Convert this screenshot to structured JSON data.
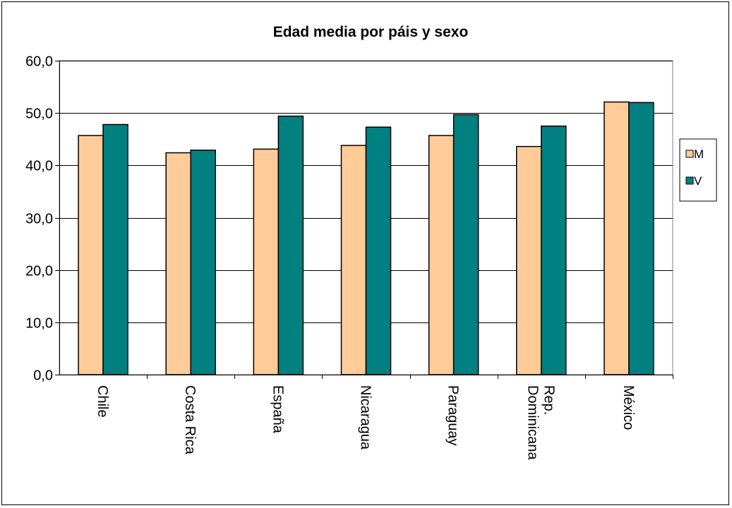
{
  "chart_data": {
    "type": "bar",
    "title": "Edad media por páis  y sexo",
    "categories": [
      "Chile",
      "Costa Rica",
      "España",
      "Nicaragua",
      "Paraguay",
      "Rep. Dominicana",
      "México"
    ],
    "category_lines": [
      [
        "Chile"
      ],
      [
        "Costa Rica"
      ],
      [
        "España"
      ],
      [
        "Nicaragua"
      ],
      [
        "Paraguay"
      ],
      [
        "Rep.",
        "Dominicana"
      ],
      [
        "México"
      ]
    ],
    "series": [
      {
        "name": "M",
        "color": "#FFCC99",
        "values": [
          45.7,
          42.4,
          43.1,
          43.8,
          45.7,
          43.6,
          52.1
        ]
      },
      {
        "name": "V",
        "color": "#008080",
        "values": [
          47.8,
          42.9,
          49.4,
          47.3,
          49.7,
          47.5,
          52.0
        ]
      }
    ],
    "ylim": [
      0,
      60
    ],
    "yticks": [
      "0,0",
      "10,0",
      "20,0",
      "30,0",
      "40,0",
      "50,0",
      "60,0"
    ],
    "ytick_values": [
      0,
      10,
      20,
      30,
      40,
      50,
      60
    ],
    "xlabel": "",
    "ylabel": "",
    "grid": true,
    "legend": "right"
  }
}
